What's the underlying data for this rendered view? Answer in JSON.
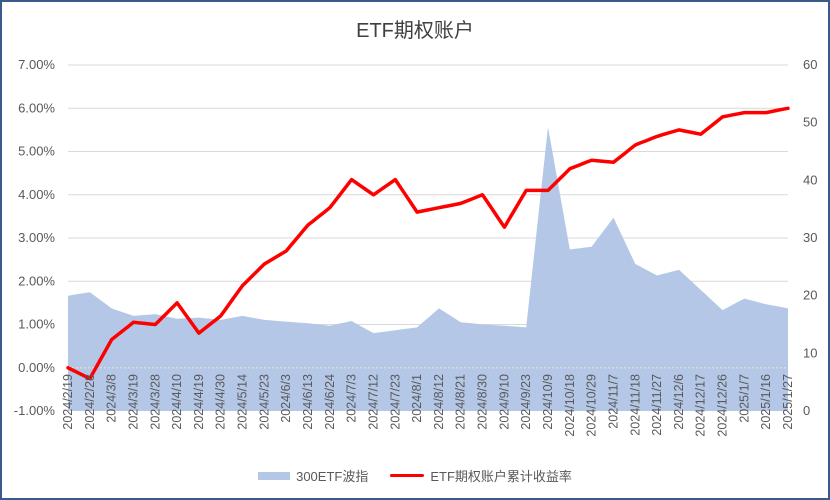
{
  "chart_data": {
    "type": "area+line",
    "title": "ETF期权账户",
    "xlabel": "",
    "ylabel_left": "",
    "ylabel_right": "",
    "left_axis": {
      "ticks": [
        "7.00%",
        "6.00%",
        "5.00%",
        "4.00%",
        "3.00%",
        "2.00%",
        "1.00%",
        "0.00%",
        "-1.00%"
      ],
      "range": [
        -1.0,
        7.0
      ]
    },
    "right_axis": {
      "ticks": [
        "60",
        "50",
        "40",
        "30",
        "20",
        "10",
        "0"
      ],
      "range": [
        0,
        60
      ]
    },
    "grid": true,
    "legend_position": "bottom",
    "categories": [
      "2024/2/19",
      "2024/2/28",
      "2024/3/8",
      "2024/3/19",
      "2024/3/28",
      "2024/4/10",
      "2024/4/19",
      "2024/4/30",
      "2024/5/14",
      "2024/5/23",
      "2024/6/3",
      "2024/6/13",
      "2024/6/24",
      "2024/7/3",
      "2024/7/12",
      "2024/7/23",
      "2024/8/1",
      "2024/8/12",
      "2024/8/21",
      "2024/8/30",
      "2024/9/10",
      "2024/9/23",
      "2024/10/9",
      "2024/10/18",
      "2024/10/29",
      "2024/11/7",
      "2024/11/18",
      "2024/11/27",
      "2024/12/6",
      "2024/12/17",
      "2024/12/26",
      "2025/1/7",
      "2025/1/16",
      "2025/1/27"
    ],
    "series": [
      {
        "name": "300ETF波指",
        "axis": "right",
        "type": "area",
        "color": "#b4c7e7",
        "values": [
          20.0,
          20.6,
          17.8,
          16.5,
          16.8,
          16.0,
          16.2,
          15.8,
          16.5,
          15.8,
          15.5,
          15.2,
          14.8,
          15.6,
          13.5,
          14.0,
          14.5,
          17.8,
          15.4,
          15.0,
          14.8,
          14.5,
          49.2,
          28.0,
          28.5,
          33.5,
          25.5,
          23.5,
          24.5,
          21.0,
          17.5,
          19.5,
          18.5,
          17.8
        ]
      },
      {
        "name": "ETF期权账户累计收益率",
        "axis": "left",
        "type": "line",
        "color": "#ff0000",
        "unit": "%",
        "values": [
          0.0,
          -0.25,
          0.65,
          1.05,
          1.0,
          1.5,
          0.8,
          1.2,
          1.9,
          2.4,
          2.7,
          3.3,
          3.7,
          4.35,
          4.0,
          4.35,
          3.6,
          3.7,
          3.8,
          4.0,
          3.25,
          4.1,
          4.1,
          4.6,
          4.8,
          4.75,
          5.15,
          5.35,
          5.5,
          5.4,
          5.8,
          5.9,
          5.9,
          6.0
        ]
      }
    ]
  },
  "legend": {
    "area_label": "300ETF波指",
    "line_label": "ETF期权账户累计收益率"
  }
}
